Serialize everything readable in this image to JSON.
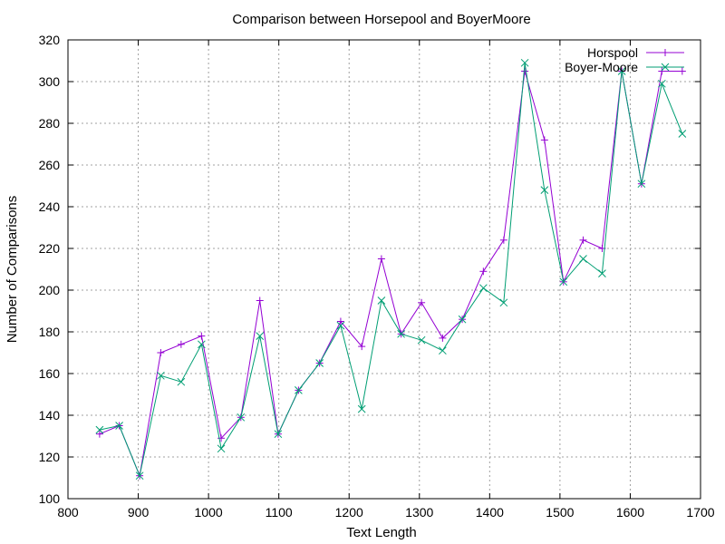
{
  "chart_data": {
    "type": "line",
    "title": "Comparison between Horsepool and BoyerMoore",
    "xlabel": "Text Length",
    "ylabel": "Number of Comparisons",
    "xlim": [
      800,
      1700
    ],
    "ylim": [
      100,
      320
    ],
    "xticks": [
      800,
      900,
      1000,
      1100,
      1200,
      1300,
      1400,
      1500,
      1600,
      1700
    ],
    "yticks": [
      100,
      120,
      140,
      160,
      180,
      200,
      220,
      240,
      260,
      280,
      300,
      320
    ],
    "grid": true,
    "legend_position": "top-right",
    "x": [
      845,
      873,
      902,
      932,
      961,
      990,
      1018,
      1046,
      1073,
      1099,
      1128,
      1158,
      1188,
      1218,
      1246,
      1274,
      1303,
      1333,
      1361,
      1391,
      1420,
      1450,
      1478,
      1505,
      1533,
      1560,
      1588,
      1616,
      1645,
      1674
    ],
    "series": [
      {
        "name": "Horspool",
        "color": "#9400d3",
        "marker": "plus",
        "values": [
          131,
          135,
          111,
          170,
          174,
          178,
          129,
          139,
          195,
          131,
          152,
          165,
          185,
          173,
          215,
          179,
          194,
          177,
          186,
          209,
          224,
          305,
          272,
          204,
          224,
          220,
          305,
          251,
          305,
          305
        ]
      },
      {
        "name": "Boyer-Moore",
        "color": "#009e73",
        "marker": "cross",
        "values": [
          133,
          135,
          111,
          159,
          156,
          174,
          124,
          139,
          178,
          131,
          152,
          165,
          183,
          143,
          195,
          179,
          176,
          171,
          186,
          201,
          194,
          309,
          248,
          204,
          215,
          208,
          305,
          251,
          299,
          275
        ]
      }
    ]
  }
}
